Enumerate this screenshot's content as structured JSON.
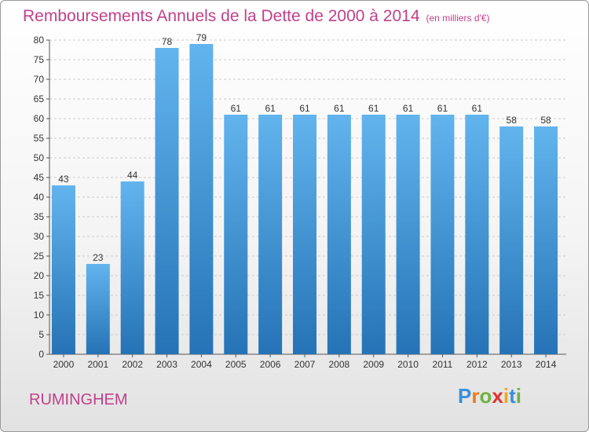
{
  "chart_data": {
    "type": "bar",
    "title": "Remboursements Annuels de la Dette de 2000 à 2014",
    "unit_label": "(en milliers d'€)",
    "categories": [
      "2000",
      "2001",
      "2002",
      "2003",
      "2004",
      "2005",
      "2006",
      "2007",
      "2008",
      "2009",
      "2010",
      "2011",
      "2012",
      "2013",
      "2014"
    ],
    "values": [
      43,
      23,
      44,
      78,
      79,
      61,
      61,
      61,
      61,
      61,
      61,
      61,
      61,
      58,
      58
    ],
    "ylim": [
      0,
      80
    ],
    "yticks": [
      0,
      5,
      10,
      15,
      20,
      25,
      30,
      35,
      40,
      45,
      50,
      55,
      60,
      65,
      70,
      75,
      80
    ],
    "xlabel": "",
    "ylabel": "",
    "grid": true
  },
  "commune": "RUMINGHEM",
  "logo": {
    "text": "Proxiti",
    "letter_colors": [
      "#3a8fd8",
      "#f07a1a",
      "#6db33f",
      "#e3312d",
      "#f0a51a",
      "#3a8fd8",
      "#6db33f"
    ]
  },
  "colors": {
    "title": "#c0418a",
    "bar_light": "#62b4ee",
    "bar_dark": "#2573b6",
    "grid": "#cccccc",
    "axis": "#555555"
  }
}
